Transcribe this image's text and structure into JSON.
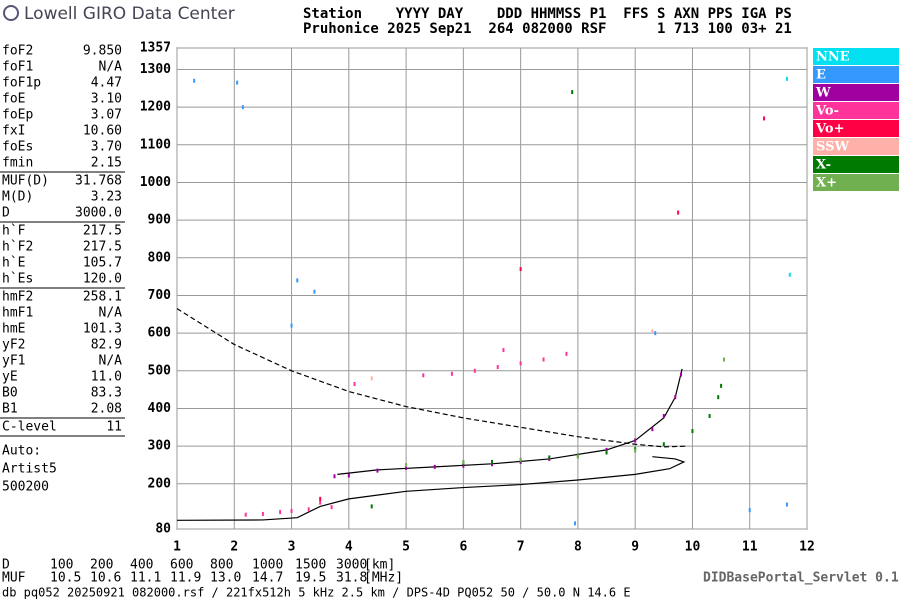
{
  "header": {
    "title": "Lowell GIRO Data Center",
    "line1": "Station    YYYY DAY    DDD HHMMSS P1  FFS S AXN PPS IGA PS",
    "line2": "Pruhonice 2025 Sep21  264 082000 RSF      1 713 100 03+ 21"
  },
  "params": [
    [
      [
        "foF2",
        "9.850"
      ],
      [
        "foF1",
        "N/A"
      ],
      [
        "foF1p",
        "4.47"
      ],
      [
        "foE",
        "3.10"
      ],
      [
        "foEp",
        "3.07"
      ],
      [
        "fxI",
        "10.60"
      ],
      [
        "foEs",
        "3.70"
      ],
      [
        "fmin",
        "2.15"
      ]
    ],
    [
      [
        "MUF(D)",
        "31.768"
      ],
      [
        "M(D)",
        "3.23"
      ],
      [
        "D",
        "3000.0"
      ]
    ],
    [
      [
        "h`F",
        "217.5"
      ],
      [
        "h`F2",
        "217.5"
      ],
      [
        "h`E",
        "105.7"
      ],
      [
        "h`Es",
        "120.0"
      ]
    ],
    [
      [
        "hmF2",
        "258.1"
      ],
      [
        "hmF1",
        "N/A"
      ],
      [
        "hmE",
        "101.3"
      ],
      [
        "yF2",
        "82.9"
      ],
      [
        "yF1",
        "N/A"
      ],
      [
        "yE",
        "11.0"
      ],
      [
        "B0",
        "83.3"
      ],
      [
        "B1",
        "2.08"
      ]
    ],
    [
      [
        "C-level",
        "11"
      ]
    ]
  ],
  "autoscale": [
    "Auto:",
    "Artist5",
    "500200"
  ],
  "bottom": {
    "rows": [
      [
        "D",
        "100",
        "200",
        "400",
        "600",
        "800",
        "1000",
        "1500",
        "3000",
        "[km]"
      ],
      [
        "MUF",
        "10.5",
        "10.6",
        "11.1",
        "11.9",
        "13.0",
        "14.7",
        "19.5",
        "31.8",
        "[MHz]"
      ]
    ],
    "footer": "db pq052 20250921 082000.rsf / 221fx512h 5 kHz 2.5 km / DPS-4D PQ052 50 / 50.0 N 14.6 E",
    "servlet": "DIDBasePortal_Servlet 0.1"
  },
  "chart_data": {
    "type": "scatter",
    "grid": true,
    "xlim": [
      1,
      12
    ],
    "xticks": [
      1,
      2,
      3,
      4,
      5,
      6,
      7,
      8,
      9,
      10,
      11,
      12
    ],
    "ylim": [
      80,
      1357
    ],
    "yticks": [
      80,
      200,
      300,
      400,
      500,
      600,
      700,
      800,
      900,
      1000,
      1100,
      1200,
      1300,
      1357
    ],
    "series": [
      {
        "name": "NNE",
        "color": "#00e0f0",
        "x": [
          11.65,
          11.7
        ],
        "values": [
          1275,
          755
        ]
      },
      {
        "name": "E",
        "color": "#3399ff",
        "x": [
          1.3,
          2.05,
          2.15,
          3.0,
          3.1,
          3.4,
          7.95,
          11.0,
          11.65,
          9.35
        ],
        "values": [
          1270,
          1265,
          1200,
          620,
          740,
          710,
          95,
          130,
          145,
          600
        ]
      },
      {
        "name": "W",
        "color": "#a000a0",
        "x": [
          3.75,
          4.0,
          4.5,
          5.0,
          5.5,
          6.0,
          6.5,
          7.0,
          7.5,
          8.0,
          8.5,
          9.0,
          9.3,
          9.5,
          9.7,
          9.8
        ],
        "values": [
          220,
          222,
          235,
          242,
          245,
          248,
          252,
          258,
          266,
          275,
          290,
          315,
          345,
          380,
          430,
          490
        ]
      },
      {
        "name": "Vo-",
        "color": "#ff3399",
        "x": [
          2.2,
          2.5,
          2.8,
          3.0,
          3.3,
          3.5,
          3.7,
          4.1,
          5.3,
          5.8,
          6.2,
          6.6,
          7.0,
          7.4,
          7.8,
          6.7
        ],
        "values": [
          118,
          120,
          125,
          128,
          132,
          150,
          138,
          465,
          488,
          492,
          500,
          510,
          520,
          530,
          545,
          555
        ]
      },
      {
        "name": "Vo+",
        "color": "#ff0044",
        "x": [
          3.5,
          9.75,
          11.25,
          7.0
        ],
        "values": [
          160,
          920,
          1170,
          770
        ]
      },
      {
        "name": "SSW",
        "color": "#ffb0a8",
        "x": [
          4.4,
          9.3
        ],
        "values": [
          480,
          605
        ]
      },
      {
        "name": "X-",
        "color": "#007a00",
        "x": [
          6.0,
          6.5,
          7.0,
          7.5,
          8.0,
          8.5,
          9.0,
          9.5,
          10.0,
          10.3,
          10.45,
          10.5,
          7.9,
          4.4
        ],
        "values": [
          255,
          258,
          262,
          270,
          275,
          283,
          292,
          305,
          340,
          380,
          430,
          460,
          1240,
          140
        ]
      },
      {
        "name": "X+",
        "color": "#70b050",
        "x": [
          5.0,
          6.0,
          7.0,
          8.0,
          9.0,
          10.55
        ],
        "values": [
          250,
          258,
          264,
          272,
          288,
          530
        ]
      }
    ],
    "curves": [
      {
        "color": "#000000",
        "dash": false,
        "x": [
          1.0,
          2.5,
          3.1,
          3.5,
          4.0,
          5.0,
          6.0,
          7.0,
          8.0,
          9.0,
          9.6,
          9.85,
          9.7,
          9.3
        ],
        "values": [
          103,
          104,
          110,
          140,
          160,
          180,
          190,
          198,
          210,
          225,
          240,
          258,
          266,
          272
        ]
      },
      {
        "color": "#000000",
        "dash": false,
        "x": [
          3.8,
          4.5,
          5.5,
          6.5,
          7.5,
          8.5,
          9.0,
          9.5,
          9.7,
          9.82
        ],
        "values": [
          225,
          237,
          245,
          253,
          266,
          290,
          315,
          375,
          430,
          505
        ]
      },
      {
        "color": "#000000",
        "dash": true,
        "x": [
          1.0,
          2.0,
          3.0,
          4.0,
          5.0,
          6.0,
          7.0,
          8.0,
          9.0,
          9.5,
          9.9
        ],
        "values": [
          665,
          570,
          500,
          445,
          405,
          375,
          350,
          325,
          305,
          298,
          300
        ]
      }
    ]
  }
}
